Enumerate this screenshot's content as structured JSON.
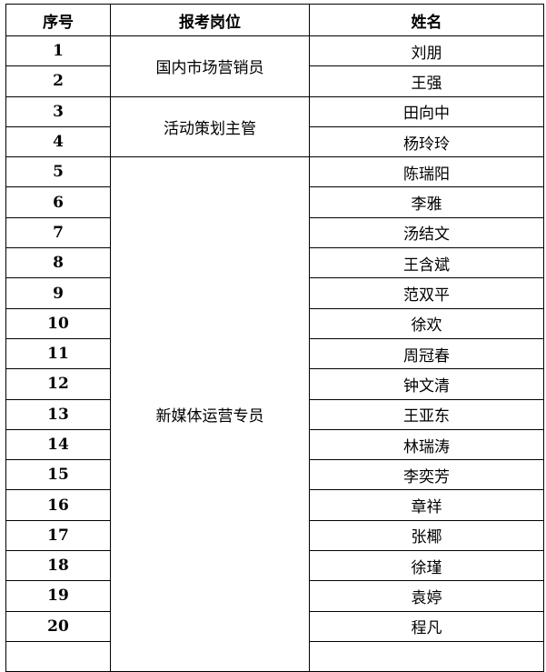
{
  "headers": {
    "index": "序号",
    "position": "报考岗位",
    "name": "姓名"
  },
  "groups": [
    {
      "position": "国内市场营销员",
      "rows": [
        {
          "no": "1",
          "name": "刘朋"
        },
        {
          "no": "2",
          "name": "王强"
        }
      ]
    },
    {
      "position": "活动策划主管",
      "rows": [
        {
          "no": "3",
          "name": "田向中"
        },
        {
          "no": "4",
          "name": "杨玲玲"
        }
      ]
    },
    {
      "position": "新媒体运营专员",
      "rows": [
        {
          "no": "5",
          "name": "陈瑞阳"
        },
        {
          "no": "6",
          "name": "李雅"
        },
        {
          "no": "7",
          "name": "汤结文"
        },
        {
          "no": "8",
          "name": "王含斌"
        },
        {
          "no": "9",
          "name": "范双平"
        },
        {
          "no": "10",
          "name": "徐欢"
        },
        {
          "no": "11",
          "name": "周冠春"
        },
        {
          "no": "12",
          "name": "钟文清"
        },
        {
          "no": "13",
          "name": "王亚东"
        },
        {
          "no": "14",
          "name": "林瑞涛"
        },
        {
          "no": "15",
          "name": "李奕芳"
        },
        {
          "no": "16",
          "name": "章祥"
        },
        {
          "no": "17",
          "name": "张椰"
        },
        {
          "no": "18",
          "name": "徐瑾"
        },
        {
          "no": "19",
          "name": "袁婷"
        },
        {
          "no": "20",
          "name": "程凡"
        }
      ]
    }
  ]
}
